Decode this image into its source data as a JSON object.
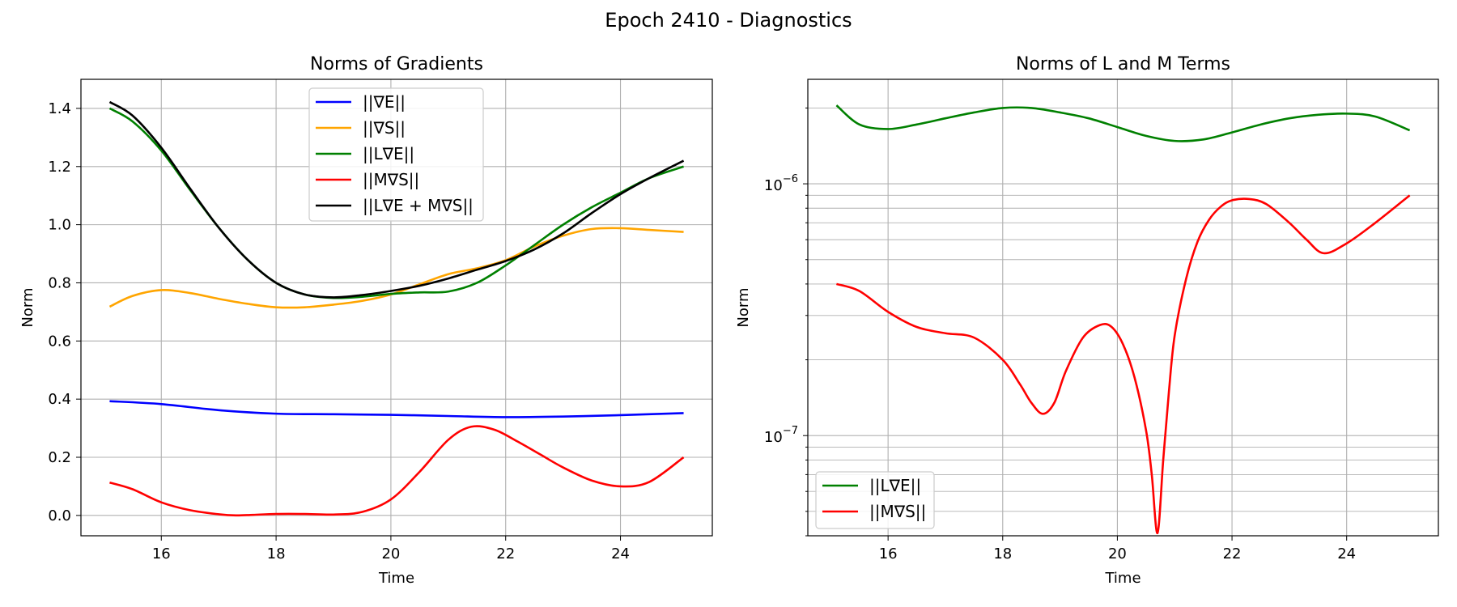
{
  "figure": {
    "suptitle": "Epoch 2410 - Diagnostics"
  },
  "chart_data": [
    {
      "type": "line",
      "title": "Norms of Gradients",
      "xlabel": "Time",
      "ylabel": "Norm",
      "xlim": [
        14.6,
        25.6
      ],
      "ylim": [
        -0.07,
        1.5
      ],
      "yscale": "linear",
      "grid": true,
      "legend": "upper center",
      "xticks": [
        16,
        18,
        20,
        22,
        24
      ],
      "yticks": [
        0.0,
        0.2,
        0.4,
        0.6,
        0.8,
        1.0,
        1.2,
        1.4
      ],
      "ytick_labels": [
        "0.0",
        "0.2",
        "0.4",
        "0.6",
        "0.8",
        "1.0",
        "1.2",
        "1.4"
      ],
      "series": [
        {
          "name": "||∇E||",
          "color": "#0000ff",
          "x": [
            15.1,
            16.0,
            17.0,
            18.0,
            19.0,
            20.0,
            21.0,
            22.0,
            23.0,
            24.0,
            25.1
          ],
          "y": [
            0.393,
            0.383,
            0.362,
            0.35,
            0.348,
            0.346,
            0.342,
            0.338,
            0.34,
            0.345,
            0.352
          ]
        },
        {
          "name": "||∇S||",
          "color": "#ffa500",
          "x": [
            15.1,
            15.5,
            16.0,
            16.5,
            17.0,
            17.5,
            18.0,
            18.5,
            19.0,
            19.5,
            20.0,
            20.5,
            21.0,
            21.5,
            22.0,
            22.5,
            23.0,
            23.5,
            24.0,
            24.5,
            25.1
          ],
          "y": [
            0.718,
            0.755,
            0.775,
            0.765,
            0.745,
            0.728,
            0.716,
            0.716,
            0.725,
            0.738,
            0.76,
            0.795,
            0.83,
            0.85,
            0.878,
            0.925,
            0.962,
            0.985,
            0.988,
            0.982,
            0.975
          ]
        },
        {
          "name": "||L∇E||",
          "color": "#008000",
          "x": [
            15.1,
            15.5,
            16.0,
            16.5,
            17.0,
            17.5,
            18.0,
            18.5,
            19.0,
            19.5,
            20.0,
            20.5,
            21.0,
            21.5,
            22.0,
            22.5,
            23.0,
            23.5,
            24.0,
            24.5,
            25.1
          ],
          "y": [
            1.4,
            1.355,
            1.255,
            1.12,
            0.99,
            0.88,
            0.8,
            0.76,
            0.748,
            0.752,
            0.762,
            0.767,
            0.77,
            0.8,
            0.86,
            0.93,
            1.0,
            1.06,
            1.11,
            1.16,
            1.2
          ]
        },
        {
          "name": "||M∇S||",
          "color": "#ff0000",
          "x": [
            15.1,
            15.5,
            16.0,
            16.5,
            17.0,
            17.3,
            17.6,
            18.0,
            18.5,
            19.0,
            19.5,
            20.0,
            20.5,
            21.0,
            21.4,
            21.8,
            22.2,
            22.6,
            23.0,
            23.5,
            24.0,
            24.5,
            25.1
          ],
          "y": [
            0.113,
            0.09,
            0.045,
            0.018,
            0.004,
            0.0,
            0.002,
            0.005,
            0.005,
            0.003,
            0.012,
            0.055,
            0.15,
            0.26,
            0.305,
            0.295,
            0.255,
            0.21,
            0.165,
            0.12,
            0.1,
            0.115,
            0.2
          ]
        },
        {
          "name": "||L∇E + M∇S||",
          "color": "#000000",
          "x": [
            15.1,
            15.5,
            16.0,
            16.5,
            17.0,
            17.5,
            18.0,
            18.5,
            19.0,
            19.5,
            20.0,
            20.5,
            21.0,
            21.5,
            22.0,
            22.5,
            23.0,
            23.5,
            24.0,
            24.5,
            25.1
          ],
          "y": [
            1.422,
            1.375,
            1.265,
            1.125,
            0.99,
            0.88,
            0.8,
            0.76,
            0.75,
            0.758,
            0.772,
            0.79,
            0.815,
            0.845,
            0.875,
            0.915,
            0.97,
            1.04,
            1.105,
            1.16,
            1.22
          ]
        }
      ]
    },
    {
      "type": "line",
      "title": "Norms of L and M Terms",
      "xlabel": "Time",
      "ylabel": "Norm",
      "xlim": [
        14.6,
        25.6
      ],
      "ylim": [
        4e-08,
        2.6e-06
      ],
      "yscale": "log",
      "grid": true,
      "legend": "lower left",
      "xticks": [
        16,
        18,
        20,
        22,
        24
      ],
      "ytick_major": [
        {
          "value": 1e-07,
          "base": "10",
          "exp": "−7"
        },
        {
          "value": 1e-06,
          "base": "10",
          "exp": "−6"
        }
      ],
      "series": [
        {
          "name": "||L∇E||",
          "color": "#008000",
          "x": [
            15.1,
            15.5,
            16.0,
            16.5,
            17.0,
            17.5,
            18.0,
            18.5,
            19.0,
            19.5,
            20.0,
            20.5,
            21.0,
            21.5,
            22.0,
            22.5,
            23.0,
            23.5,
            24.0,
            24.5,
            25.1
          ],
          "y": [
            2.05e-06,
            1.72e-06,
            1.65e-06,
            1.72e-06,
            1.82e-06,
            1.92e-06,
            2e-06,
            2e-06,
            1.92e-06,
            1.82e-06,
            1.68e-06,
            1.55e-06,
            1.48e-06,
            1.5e-06,
            1.6e-06,
            1.72e-06,
            1.82e-06,
            1.88e-06,
            1.9e-06,
            1.85e-06,
            1.63e-06
          ]
        },
        {
          "name": "||M∇S||",
          "color": "#ff0000",
          "x": [
            15.1,
            15.5,
            16.0,
            16.5,
            17.0,
            17.5,
            18.0,
            18.3,
            18.5,
            18.7,
            18.9,
            19.1,
            19.4,
            19.7,
            19.9,
            20.1,
            20.3,
            20.5,
            20.6,
            20.7,
            20.8,
            20.9,
            21.0,
            21.2,
            21.4,
            21.6,
            21.8,
            22.0,
            22.3,
            22.6,
            23.0,
            23.3,
            23.6,
            24.0,
            24.5,
            25.1
          ],
          "y": [
            4e-07,
            3.75e-07,
            3.1e-07,
            2.7e-07,
            2.55e-07,
            2.45e-07,
            2e-07,
            1.6e-07,
            1.35e-07,
            1.22e-07,
            1.35e-07,
            1.8e-07,
            2.45e-07,
            2.75e-07,
            2.7e-07,
            2.3e-07,
            1.7e-07,
            1.05e-07,
            7e-08,
            4.1e-08,
            8e-08,
            1.5e-07,
            2.5e-07,
            4.2e-07,
            5.9e-07,
            7.2e-07,
            8.1e-07,
            8.6e-07,
            8.7e-07,
            8.3e-07,
            7e-07,
            6e-07,
            5.3e-07,
            5.8e-07,
            7e-07,
            9e-07
          ]
        }
      ]
    }
  ]
}
